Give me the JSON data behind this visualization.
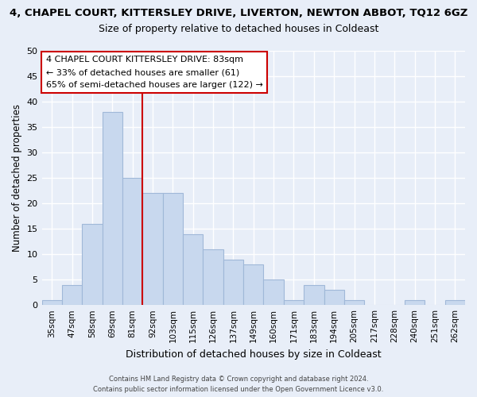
{
  "title": "4, CHAPEL COURT, KITTERSLEY DRIVE, LIVERTON, NEWTON ABBOT, TQ12 6GZ",
  "subtitle": "Size of property relative to detached houses in Coldeast",
  "xlabel": "Distribution of detached houses by size in Coldeast",
  "ylabel": "Number of detached properties",
  "footer_line1": "Contains HM Land Registry data © Crown copyright and database right 2024.",
  "footer_line2": "Contains public sector information licensed under the Open Government Licence v3.0.",
  "bar_labels": [
    "35sqm",
    "47sqm",
    "58sqm",
    "69sqm",
    "81sqm",
    "92sqm",
    "103sqm",
    "115sqm",
    "126sqm",
    "137sqm",
    "149sqm",
    "160sqm",
    "171sqm",
    "183sqm",
    "194sqm",
    "205sqm",
    "217sqm",
    "228sqm",
    "240sqm",
    "251sqm",
    "262sqm"
  ],
  "bar_heights": [
    1,
    4,
    16,
    38,
    25,
    22,
    22,
    14,
    11,
    9,
    8,
    5,
    1,
    4,
    3,
    1,
    0,
    0,
    1,
    0,
    1
  ],
  "bar_color": "#c8d8ee",
  "bar_edge_color": "#a0b8d8",
  "vline_color": "#cc0000",
  "vline_x_idx": 4.5,
  "annotation_title": "4 CHAPEL COURT KITTERSLEY DRIVE: 83sqm",
  "annotation_line1": "← 33% of detached houses are smaller (61)",
  "annotation_line2": "65% of semi-detached houses are larger (122) →",
  "annotation_box_color": "#cc0000",
  "ylim": [
    0,
    50
  ],
  "yticks": [
    0,
    5,
    10,
    15,
    20,
    25,
    30,
    35,
    40,
    45,
    50
  ],
  "background_color": "#e8eef8",
  "plot_background": "#e8eef8",
  "grid_color": "#ffffff"
}
